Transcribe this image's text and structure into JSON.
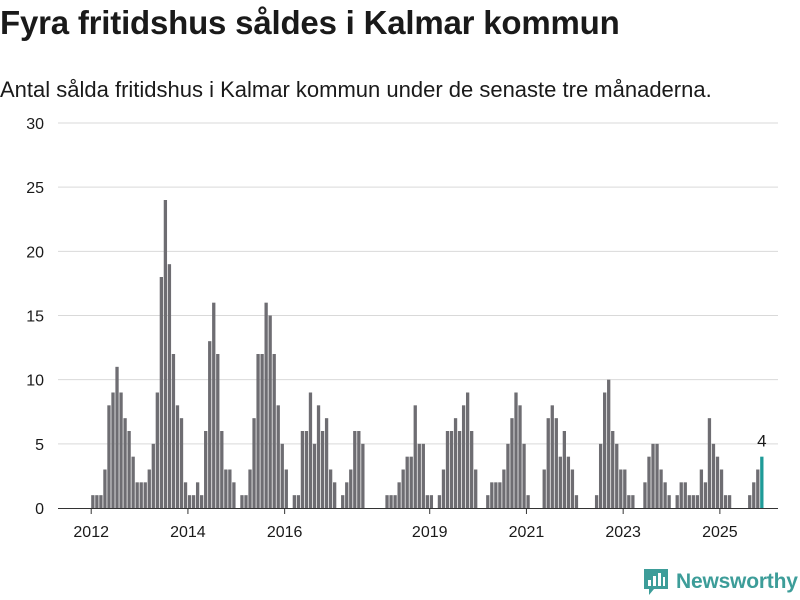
{
  "header": {
    "title": "Fyra fritidshus såldes i Kalmar kommun",
    "subtitle": "Antal sålda fritidshus i Kalmar kommun under de senaste tre månaderna."
  },
  "brand": {
    "name": "Newsworthy",
    "icon": "newsworthy-logo-icon",
    "color": "#3d9d99"
  },
  "chart_data": {
    "type": "bar",
    "title": "",
    "xlabel": "",
    "ylabel": "",
    "ylim": [
      0,
      30
    ],
    "yticks": [
      0,
      5,
      10,
      15,
      20,
      25,
      30
    ],
    "xticks": [
      {
        "label": "2012",
        "year": 2012
      },
      {
        "label": "2014",
        "year": 2014
      },
      {
        "label": "2016",
        "year": 2016
      },
      {
        "label": "2019",
        "year": 2019
      },
      {
        "label": "2021",
        "year": 2021
      },
      {
        "label": "2023",
        "year": 2023
      },
      {
        "label": "2025",
        "year": 2025
      }
    ],
    "grid": true,
    "legend": "none",
    "bar_color": "#6e6d72",
    "highlight_color": "#1f9b98",
    "series": [
      {
        "values": [
          1,
          1,
          1,
          3,
          8,
          9,
          11,
          9,
          7,
          6,
          4,
          2,
          2,
          2,
          3,
          5,
          9,
          18,
          24,
          19,
          12,
          8,
          7,
          2,
          1,
          1,
          2,
          1,
          6,
          13,
          16,
          12,
          6,
          3,
          3,
          2,
          0,
          1,
          1,
          3,
          7,
          12,
          12,
          16,
          15,
          12,
          8,
          5,
          3,
          0,
          1,
          1,
          6,
          6,
          9,
          5,
          8,
          6,
          7,
          3,
          2,
          0,
          1,
          2,
          3,
          6,
          6,
          5,
          0,
          0,
          0,
          0,
          0,
          1,
          1,
          1,
          2,
          3,
          4,
          4,
          8,
          5,
          5,
          1,
          1,
          0,
          1,
          3,
          6,
          6,
          7,
          6,
          8,
          9,
          6,
          3,
          0,
          0,
          1,
          2,
          2,
          2,
          3,
          5,
          7,
          9,
          8,
          5,
          1,
          0,
          0,
          0,
          3,
          7,
          8,
          7,
          4,
          6,
          4,
          3,
          1,
          0,
          0,
          0,
          0,
          1,
          5,
          9,
          10,
          6,
          5,
          3,
          3,
          1,
          1,
          0,
          0,
          2,
          4,
          5,
          5,
          3,
          2,
          1,
          0,
          1,
          2,
          2,
          1,
          1,
          1,
          3,
          2,
          7,
          5,
          4,
          3,
          1,
          1,
          0,
          0,
          0,
          0,
          1,
          2,
          3,
          4
        ],
        "highlight_last": true
      }
    ],
    "annotations": [
      {
        "text": "4",
        "target": "last-bar"
      }
    ]
  }
}
